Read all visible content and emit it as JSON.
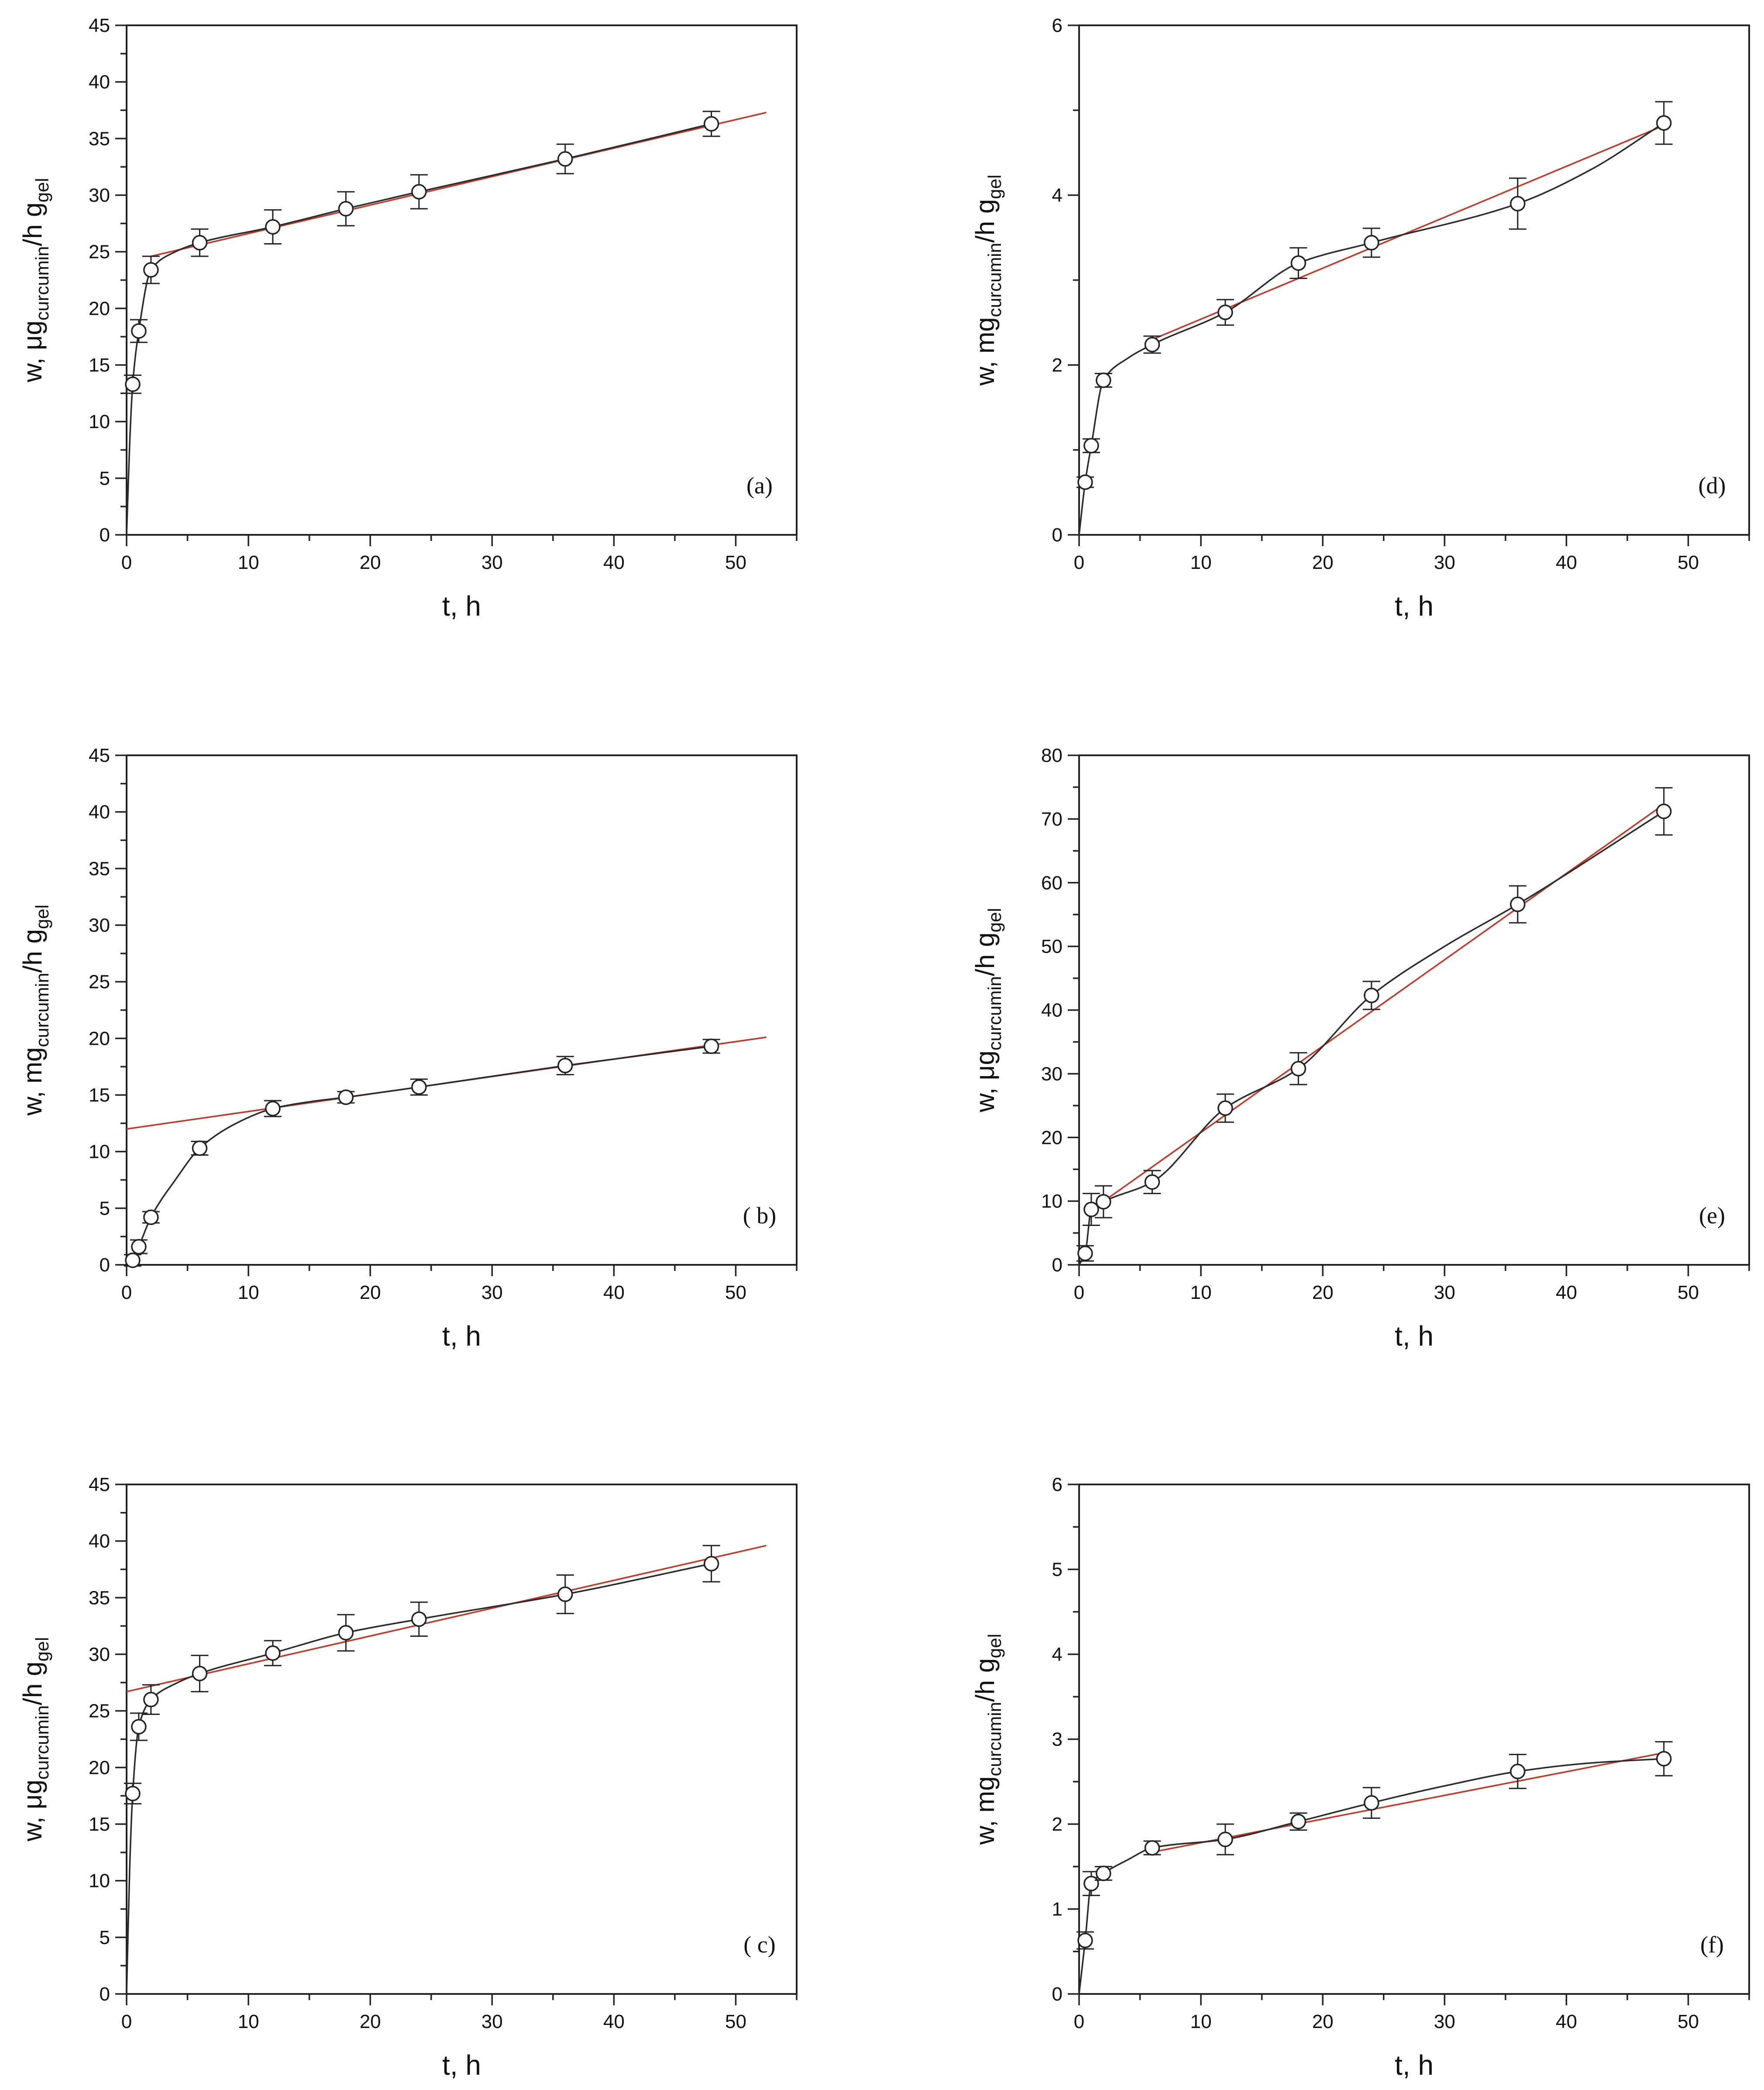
{
  "colors": {
    "kinetic": "#2a2a2a",
    "fit": "#c0392b",
    "axis": "#222222"
  },
  "chart_data": [
    {
      "id": "a",
      "type": "scatter",
      "panel_label": "(a)",
      "xlabel": "t, h",
      "ylabel": {
        "pre": "w, μg",
        "sub1": "curcumin",
        "mid": "/h g",
        "sub2": "gel"
      },
      "xlim": [
        0,
        55
      ],
      "ylim": [
        0,
        45
      ],
      "xticks": [
        0,
        10,
        20,
        30,
        40,
        50
      ],
      "xtick_labels": [
        "0",
        "10",
        "20",
        "30",
        "40",
        "50"
      ],
      "yticks": [
        0,
        5,
        10,
        15,
        20,
        25,
        30,
        35,
        40,
        45
      ],
      "ytick_labels": [
        "0",
        "5",
        "10",
        "15",
        "20",
        "25",
        "30",
        "35",
        "40",
        "45"
      ],
      "points": {
        "x": [
          0.5,
          1,
          2,
          6,
          12,
          18,
          24,
          36,
          48
        ],
        "y": [
          13.3,
          18.0,
          23.4,
          25.8,
          27.2,
          28.8,
          30.3,
          33.2,
          36.3
        ],
        "err": [
          0.8,
          1.0,
          1.2,
          1.2,
          1.5,
          1.5,
          1.5,
          1.3,
          1.1
        ]
      },
      "kinetic_curve": {
        "x": [
          0,
          0.25,
          0.5,
          1,
          2,
          4,
          6,
          12,
          18,
          24,
          36,
          48
        ],
        "y": [
          0,
          8,
          13.3,
          18.0,
          23.4,
          25.0,
          25.8,
          27.2,
          28.8,
          30.3,
          33.2,
          36.3
        ]
      },
      "linear_fit": {
        "x": [
          2,
          52.5
        ],
        "y": [
          24.6,
          37.3
        ]
      }
    },
    {
      "id": "b",
      "type": "scatter",
      "panel_label": "( b)",
      "xlabel": "t, h",
      "ylabel": {
        "pre": "w, mg",
        "sub1": "curcumin",
        "mid": "/h g",
        "sub2": "gel"
      },
      "xlim": [
        0,
        55
      ],
      "ylim": [
        0,
        45
      ],
      "xticks": [
        0,
        10,
        20,
        30,
        40,
        50
      ],
      "xtick_labels": [
        "0",
        "10",
        "20",
        "30",
        "40",
        "50"
      ],
      "yticks": [
        0,
        5,
        10,
        15,
        20,
        25,
        30,
        35,
        40,
        45
      ],
      "ytick_labels": [
        "0",
        "5",
        "10",
        "15",
        "20",
        "25",
        "30",
        "35",
        "40",
        "45"
      ],
      "points": {
        "x": [
          0.5,
          1,
          2,
          6,
          12,
          18,
          24,
          36,
          48
        ],
        "y": [
          0.4,
          1.6,
          4.2,
          10.3,
          13.8,
          14.8,
          15.7,
          17.6,
          19.3
        ],
        "err": [
          0.5,
          0.6,
          0.5,
          0.6,
          0.7,
          0.5,
          0.7,
          0.8,
          0.6
        ]
      },
      "kinetic_curve": {
        "x": [
          0,
          0.5,
          1,
          2,
          4,
          6,
          9,
          12,
          15,
          18,
          24,
          36,
          48
        ],
        "y": [
          0,
          0.4,
          1.6,
          4.2,
          7.5,
          10.3,
          12.5,
          13.8,
          14.4,
          14.8,
          15.7,
          17.6,
          19.3
        ]
      },
      "linear_fit": {
        "x": [
          0,
          52.5
        ],
        "y": [
          12.0,
          20.1
        ]
      }
    },
    {
      "id": "c",
      "type": "scatter",
      "panel_label": "( c)",
      "xlabel": "t, h",
      "ylabel": {
        "pre": "w, μg",
        "sub1": "curcumin",
        "mid": "/h g",
        "sub2": "gel"
      },
      "xlim": [
        0,
        55
      ],
      "ylim": [
        0,
        45
      ],
      "xticks": [
        0,
        10,
        20,
        30,
        40,
        50
      ],
      "xtick_labels": [
        "0",
        "10",
        "20",
        "30",
        "40",
        "50"
      ],
      "yticks": [
        0,
        5,
        10,
        15,
        20,
        25,
        30,
        35,
        40,
        45
      ],
      "ytick_labels": [
        "0",
        "5",
        "10",
        "15",
        "20",
        "25",
        "30",
        "35",
        "40",
        "45"
      ],
      "points": {
        "x": [
          0.5,
          1,
          2,
          6,
          12,
          18,
          24,
          36,
          48
        ],
        "y": [
          17.7,
          23.6,
          26.0,
          28.3,
          30.1,
          31.9,
          33.1,
          35.3,
          38.0
        ],
        "err": [
          0.9,
          1.2,
          1.3,
          1.6,
          1.1,
          1.6,
          1.5,
          1.7,
          1.6
        ]
      },
      "kinetic_curve": {
        "x": [
          0,
          0.25,
          0.5,
          1,
          2,
          4,
          6,
          12,
          18,
          24,
          36,
          48
        ],
        "y": [
          0,
          11,
          17.7,
          23.6,
          26.0,
          27.4,
          28.3,
          30.1,
          31.9,
          33.1,
          35.3,
          38.0
        ]
      },
      "linear_fit": {
        "x": [
          0,
          52.5
        ],
        "y": [
          26.7,
          39.6
        ]
      }
    },
    {
      "id": "d",
      "type": "scatter",
      "panel_label": "(d)",
      "xlabel": "t, h",
      "ylabel": {
        "pre": "w, mg",
        "sub1": "curcumin",
        "mid": "/h g",
        "sub2": "gel"
      },
      "xlim": [
        0,
        55
      ],
      "ylim": [
        0,
        6
      ],
      "xticks": [
        0,
        10,
        20,
        30,
        40,
        50
      ],
      "xtick_labels": [
        "0",
        "10",
        "20",
        "30",
        "40",
        "50"
      ],
      "yticks": [
        0,
        2,
        4,
        6
      ],
      "ytick_labels": [
        "0",
        "2",
        "4",
        "6"
      ],
      "points": {
        "x": [
          0.5,
          1,
          2,
          6,
          12,
          18,
          24,
          36,
          48
        ],
        "y": [
          0.62,
          1.05,
          1.82,
          2.24,
          2.62,
          3.2,
          3.44,
          3.9,
          4.85
        ],
        "err": [
          0.06,
          0.08,
          0.08,
          0.1,
          0.15,
          0.18,
          0.17,
          0.3,
          0.25
        ]
      },
      "kinetic_curve": {
        "x": [
          0,
          0.5,
          1,
          2,
          4,
          6,
          12,
          18,
          24,
          36,
          42,
          48
        ],
        "y": [
          0,
          0.62,
          1.05,
          1.82,
          2.08,
          2.24,
          2.62,
          3.2,
          3.44,
          3.9,
          4.3,
          4.85
        ]
      },
      "linear_fit": {
        "x": [
          6,
          48
        ],
        "y": [
          2.3,
          4.82
        ]
      }
    },
    {
      "id": "e",
      "type": "scatter",
      "panel_label": "(e)",
      "xlabel": "t, h",
      "ylabel": {
        "pre": "w, μg",
        "sub1": "curcumin",
        "mid": "/h g",
        "sub2": "gel"
      },
      "xlim": [
        0,
        55
      ],
      "ylim": [
        0,
        80
      ],
      "xticks": [
        0,
        10,
        20,
        30,
        40,
        50
      ],
      "xtick_labels": [
        "0",
        "10",
        "20",
        "30",
        "40",
        "50"
      ],
      "yticks": [
        0,
        10,
        20,
        30,
        40,
        50,
        60,
        70,
        80
      ],
      "ytick_labels": [
        "0",
        "10",
        "20",
        "30",
        "40",
        "50",
        "60",
        "70",
        "80"
      ],
      "points": {
        "x": [
          0.5,
          1,
          2,
          6,
          12,
          18,
          24,
          36,
          48
        ],
        "y": [
          1.8,
          8.7,
          9.9,
          13.0,
          24.6,
          30.8,
          42.3,
          56.6,
          71.2
        ],
        "err": [
          1.2,
          2.5,
          2.5,
          1.8,
          2.2,
          2.5,
          2.2,
          2.9,
          3.7
        ]
      },
      "kinetic_curve": {
        "x": [
          0,
          0.5,
          1,
          2,
          6,
          12,
          18,
          24,
          30,
          36,
          48
        ],
        "y": [
          0,
          1.8,
          8.7,
          9.9,
          13.0,
          24.6,
          30.8,
          42.3,
          50.0,
          56.6,
          71.2
        ]
      },
      "linear_fit": {
        "x": [
          1,
          48
        ],
        "y": [
          8.6,
          72.3
        ]
      }
    },
    {
      "id": "f",
      "type": "scatter",
      "panel_label": "(f)",
      "xlabel": "t, h",
      "ylabel": {
        "pre": "w, mg",
        "sub1": "curcumin",
        "mid": "/h g",
        "sub2": "gel"
      },
      "xlim": [
        0,
        55
      ],
      "ylim": [
        0,
        6
      ],
      "xticks": [
        0,
        10,
        20,
        30,
        40,
        50
      ],
      "xtick_labels": [
        "0",
        "10",
        "20",
        "30",
        "40",
        "50"
      ],
      "yticks": [
        0,
        1,
        2,
        3,
        4,
        5,
        6
      ],
      "ytick_labels": [
        "0",
        "1",
        "2",
        "3",
        "4",
        "5",
        "6"
      ],
      "points": {
        "x": [
          0.5,
          1,
          2,
          6,
          12,
          18,
          24,
          36,
          48
        ],
        "y": [
          0.63,
          1.3,
          1.42,
          1.72,
          1.82,
          2.03,
          2.25,
          2.62,
          2.77
        ],
        "err": [
          0.1,
          0.14,
          0.08,
          0.08,
          0.18,
          0.1,
          0.18,
          0.2,
          0.2
        ]
      },
      "kinetic_curve": {
        "x": [
          0,
          0.5,
          1,
          2,
          4,
          6,
          12,
          18,
          24,
          30,
          36,
          42,
          48
        ],
        "y": [
          0,
          0.63,
          1.3,
          1.42,
          1.58,
          1.72,
          1.82,
          2.03,
          2.25,
          2.45,
          2.62,
          2.72,
          2.77
        ]
      },
      "linear_fit": {
        "x": [
          6,
          48
        ],
        "y": [
          1.67,
          2.84
        ]
      }
    }
  ]
}
